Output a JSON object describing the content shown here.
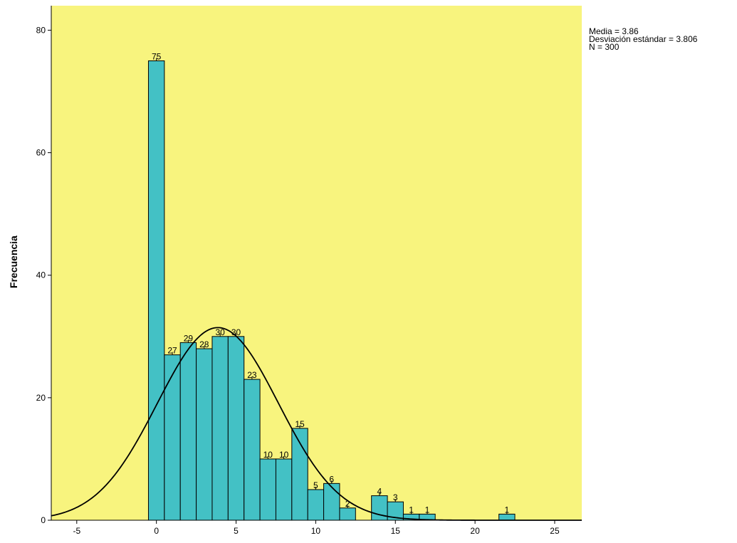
{
  "chart_data": {
    "type": "bar",
    "ylabel": "Frecuencia",
    "xlabel": "",
    "xlim": [
      -6.6,
      26.7
    ],
    "ylim": [
      0,
      84
    ],
    "x_ticks": [
      -5,
      0,
      5,
      10,
      15,
      20,
      25
    ],
    "y_ticks": [
      0,
      20,
      40,
      60,
      80
    ],
    "bin_width": 1,
    "bins": [
      {
        "start": -0.5,
        "end": 0.5,
        "count": 75
      },
      {
        "start": 0.5,
        "end": 1.5,
        "count": 27
      },
      {
        "start": 1.5,
        "end": 2.5,
        "count": 29
      },
      {
        "start": 2.5,
        "end": 3.5,
        "count": 28
      },
      {
        "start": 3.5,
        "end": 4.5,
        "count": 30
      },
      {
        "start": 4.5,
        "end": 5.5,
        "count": 30
      },
      {
        "start": 5.5,
        "end": 6.5,
        "count": 23
      },
      {
        "start": 6.5,
        "end": 7.5,
        "count": 10
      },
      {
        "start": 7.5,
        "end": 8.5,
        "count": 10
      },
      {
        "start": 8.5,
        "end": 9.5,
        "count": 15
      },
      {
        "start": 9.5,
        "end": 10.5,
        "count": 5
      },
      {
        "start": 10.5,
        "end": 11.5,
        "count": 6
      },
      {
        "start": 11.5,
        "end": 12.5,
        "count": 2
      },
      {
        "start": 13.5,
        "end": 14.5,
        "count": 4
      },
      {
        "start": 14.5,
        "end": 15.5,
        "count": 3
      },
      {
        "start": 15.5,
        "end": 16.5,
        "count": 1
      },
      {
        "start": 16.5,
        "end": 17.5,
        "count": 1
      },
      {
        "start": 21.5,
        "end": 22.5,
        "count": 1
      }
    ],
    "normal_curve": {
      "mean": 3.86,
      "sd": 3.806,
      "n": 300
    },
    "stats_lines": [
      "Media = 3.86",
      "Desviación estándar = 3.806",
      "N = 300"
    ],
    "grid": false,
    "legend": "none",
    "colors": {
      "plot_background": "#f8f47e",
      "bar_fill": "#43c1c5",
      "bar_stroke": "#000000",
      "curve": "#000000"
    }
  }
}
